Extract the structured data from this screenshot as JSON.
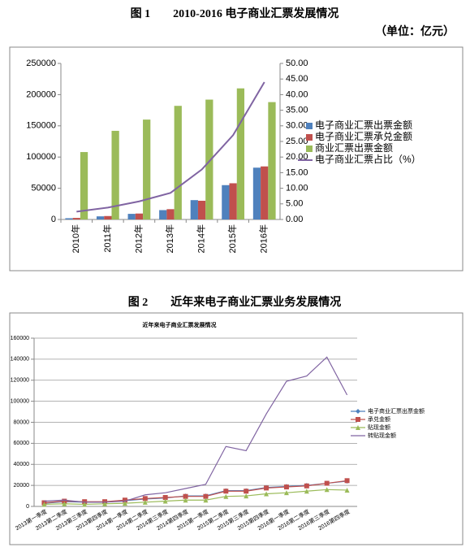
{
  "chart_data": [
    {
      "type": "bar",
      "caption": "图 1　　2010-2016 电子商业汇票发展情况",
      "unit": "（单位：亿元）",
      "categories": [
        "2010年",
        "2011年",
        "2012年",
        "2013年",
        "2014年",
        "2015年",
        "2016年"
      ],
      "series": [
        {
          "name": "电子商业汇票出票金额",
          "type": "bar",
          "color": "#4f81bd",
          "values": [
            2000,
            5000,
            9000,
            15000,
            31000,
            55000,
            83000
          ]
        },
        {
          "name": "电子商业汇票承兑金额",
          "type": "bar",
          "color": "#c0504d",
          "values": [
            2500,
            5500,
            9500,
            16500,
            30000,
            58000,
            85000
          ]
        },
        {
          "name": "商业汇票出票金额",
          "type": "bar",
          "color": "#9bbb59",
          "values": [
            108000,
            142000,
            160000,
            182000,
            192000,
            210000,
            188000
          ]
        },
        {
          "name": "电子商业汇票占比（%）",
          "type": "line",
          "axis": "y2",
          "color": "#8064a2",
          "values": [
            2.5,
            3.8,
            5.8,
            8.5,
            16,
            27,
            44
          ]
        }
      ],
      "ylim": [
        0,
        250000
      ],
      "yticks": [
        0,
        50000,
        100000,
        150000,
        200000,
        250000
      ],
      "y2lim": [
        0,
        50
      ],
      "y2ticks": [
        {
          "value": 0,
          "label": "0.00"
        },
        {
          "value": 5,
          "label": "5.00"
        },
        {
          "value": 10,
          "label": "10.00"
        },
        {
          "value": 15,
          "label": "15.00"
        },
        {
          "value": 20,
          "label": "20.00"
        },
        {
          "value": 25,
          "label": "25.00"
        },
        {
          "value": 30,
          "label": "30.00"
        },
        {
          "value": 35,
          "label": "35.00"
        },
        {
          "value": 40,
          "label": "40.00"
        },
        {
          "value": 45,
          "label": "45.00"
        },
        {
          "value": 50,
          "label": "50.00"
        }
      ],
      "grid": false,
      "legend": "right"
    },
    {
      "type": "line",
      "caption": "图 2　　近年来电子商业汇票业务发展情况",
      "title": "近年来电子商业汇票发展情况",
      "categories": [
        "2013第一季度",
        "2013第二季度",
        "2013第三季度",
        "2013第四季度",
        "2014第一季度",
        "2014第二季度",
        "2014第三季度",
        "2014第四季度",
        "2015第一季度",
        "2015第二季度",
        "2015第三季度",
        "2015第四季度",
        "2016第一季度",
        "2016第二季度",
        "2016第三季度",
        "2016第四季度"
      ],
      "series": [
        {
          "name": "电子商业汇票出票金额",
          "type": "line",
          "marker": "diamond",
          "color": "#4f81bd",
          "values": [
            3000,
            4500,
            4000,
            4000,
            5500,
            7000,
            8000,
            10000,
            10000,
            15000,
            15000,
            18000,
            19000,
            20000,
            22000,
            24000
          ]
        },
        {
          "name": "承兑金额",
          "type": "line",
          "marker": "square",
          "color": "#c0504d",
          "values": [
            3500,
            5000,
            4500,
            4500,
            6000,
            7500,
            8500,
            9500,
            9500,
            14500,
            14500,
            17500,
            18500,
            19500,
            22000,
            24500
          ]
        },
        {
          "name": "贴现金额",
          "type": "line",
          "marker": "triangle",
          "color": "#9bbb59",
          "values": [
            2000,
            2500,
            2000,
            2500,
            3000,
            4000,
            5000,
            6000,
            6000,
            9500,
            10000,
            12000,
            13000,
            14500,
            16000,
            15500
          ]
        },
        {
          "name": "转贴现金额",
          "type": "line",
          "marker": "none",
          "color": "#8064a2",
          "values": [
            5000,
            6000,
            4000,
            4000,
            5000,
            11000,
            13000,
            17000,
            21000,
            57000,
            53000,
            88000,
            119000,
            124000,
            142000,
            106000
          ]
        }
      ],
      "ylim": [
        0,
        160000
      ],
      "yticks": [
        0,
        20000,
        40000,
        60000,
        80000,
        100000,
        120000,
        140000,
        160000
      ],
      "grid": true,
      "legend": "right"
    }
  ]
}
